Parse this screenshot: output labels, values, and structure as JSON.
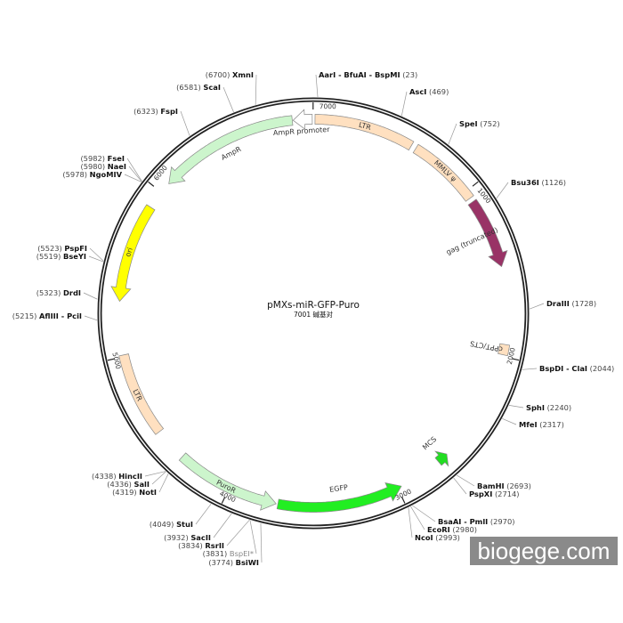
{
  "plasmid": {
    "name": "pMXs-miR-GFP-Puro",
    "length_bp": 7001,
    "length_label": "7001 碱基对"
  },
  "ticks": [
    "1000",
    "2000",
    "3000",
    "4000",
    "5000",
    "6000",
    "7000"
  ],
  "features": [
    {
      "name": "LTR",
      "start": 10,
      "end": 590,
      "direction": 0,
      "color": "#ffe0c0"
    },
    {
      "name": "MMLV ψ",
      "start": 620,
      "end": 1045,
      "direction": 0,
      "color": "#ffe0c0"
    },
    {
      "name": "gag (truncated)",
      "start": 1070,
      "end": 1480,
      "direction": 1,
      "color": "#993366"
    },
    {
      "name": "cPPT/CTS",
      "start": 1930,
      "end": 1990,
      "direction": 0,
      "color": "#ffe0c0"
    },
    {
      "name": "MCS",
      "start": 2655,
      "end": 2720,
      "direction": -1,
      "color": "#22dd22"
    },
    {
      "name": "EGFP",
      "start": 2975,
      "end": 3705,
      "direction": -1,
      "color": "#22ee22"
    },
    {
      "name": "PuroR",
      "start": 3715,
      "end": 4325,
      "direction": -1,
      "color": "#ccf5cc"
    },
    {
      "name": "LTR",
      "start": 4520,
      "end": 5010,
      "direction": 0,
      "color": "#ffe0c0"
    },
    {
      "name": "ori",
      "start": 5320,
      "end": 5895,
      "direction": -1,
      "color": "#ffff00"
    },
    {
      "name": "AmpR",
      "start": 6065,
      "end": 6880,
      "direction": -1,
      "color": "#ccf5cc"
    },
    {
      "name": "AmpR promoter",
      "start": 6885,
      "end": 6995,
      "direction": -1,
      "color": "#ffffff"
    }
  ],
  "sites": [
    {
      "name": "XmnI",
      "position": "6700",
      "side": "left"
    },
    {
      "name": "ScaI",
      "position": "6581",
      "side": "left"
    },
    {
      "name": "FspI",
      "position": "6323",
      "side": "left"
    },
    {
      "name": "FseI",
      "position": "5982",
      "side": "left"
    },
    {
      "name": "NaeI",
      "position": "5980",
      "side": "left"
    },
    {
      "name": "NgoMIV",
      "position": "5978",
      "side": "left"
    },
    {
      "name": "PspFI",
      "position": "5523",
      "side": "left"
    },
    {
      "name": "BseYI",
      "position": "5519",
      "side": "left"
    },
    {
      "name": "DrdI",
      "position": "5323",
      "side": "left"
    },
    {
      "name": "AflIII - PciI",
      "position": "5215",
      "side": "left"
    },
    {
      "name": "HincII",
      "position": "4338",
      "side": "left"
    },
    {
      "name": "SalI",
      "position": "4336",
      "side": "left"
    },
    {
      "name": "NotI",
      "position": "4319",
      "side": "left"
    },
    {
      "name": "StuI",
      "position": "4049",
      "side": "left"
    },
    {
      "name": "SacII",
      "position": "3932",
      "side": "left"
    },
    {
      "name": "RsrII",
      "position": "3834",
      "side": "left"
    },
    {
      "name": "BspEI*",
      "position": "3831",
      "side": "left",
      "muted": true
    },
    {
      "name": "BsiWI",
      "position": "3774",
      "side": "left"
    },
    {
      "name": "AarI - BfuAI - BspMI",
      "position": "23",
      "side": "right"
    },
    {
      "name": "AscI",
      "position": "469",
      "side": "right"
    },
    {
      "name": "SpeI",
      "position": "752",
      "side": "right"
    },
    {
      "name": "Bsu36I",
      "position": "1126",
      "side": "right"
    },
    {
      "name": "DraIII",
      "position": "1728",
      "side": "right"
    },
    {
      "name": "BspDI - ClaI",
      "position": "2044",
      "side": "right"
    },
    {
      "name": "SphI",
      "position": "2240",
      "side": "right"
    },
    {
      "name": "MfeI",
      "position": "2317",
      "side": "right"
    },
    {
      "name": "BamHI",
      "position": "2693",
      "side": "right"
    },
    {
      "name": "PspXI",
      "position": "2714",
      "side": "right"
    },
    {
      "name": "BsaAI - PmlI",
      "position": "2970",
      "side": "right"
    },
    {
      "name": "EcoRI",
      "position": "2980",
      "side": "right"
    },
    {
      "name": "NcoI",
      "position": "2993",
      "side": "right"
    }
  ],
  "watermark": "biogege.com"
}
